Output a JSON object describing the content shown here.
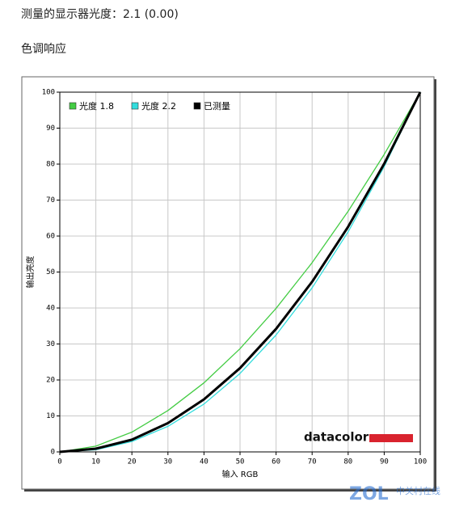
{
  "heading": "测量的显示器光度：2.1 (0.00)",
  "subheading": "色调响应",
  "logo": "datacolor",
  "watermark": {
    "brand": "ZOL",
    "name": "中关村在线"
  },
  "chart_data": {
    "type": "line",
    "x_label": "输入 RGB",
    "y_label": "输出亮度",
    "x": [
      0,
      10,
      20,
      30,
      40,
      50,
      60,
      70,
      80,
      90,
      100
    ],
    "series": [
      {
        "name": "光度 1.8",
        "color": "#44cc44",
        "values": [
          0,
          1.6,
          5.5,
          11.5,
          19.2,
          28.7,
          39.9,
          52.6,
          66.9,
          82.7,
          100
        ]
      },
      {
        "name": "光度 2.2",
        "color": "#33dddd",
        "values": [
          0,
          0.6,
          2.9,
          7.1,
          13.3,
          21.8,
          32.5,
          45.6,
          61.2,
          79.3,
          100
        ]
      },
      {
        "name": "已测量",
        "color": "#000000",
        "values": [
          0,
          0.9,
          3.4,
          8.0,
          14.6,
          23.3,
          34.2,
          47.3,
          62.6,
          80.1,
          100
        ]
      }
    ],
    "xlim": [
      0,
      100
    ],
    "ylim": [
      0,
      100
    ],
    "xticks": [
      0,
      10,
      20,
      30,
      40,
      50,
      60,
      70,
      80,
      90,
      100
    ],
    "yticks": [
      0,
      10,
      20,
      30,
      40,
      50,
      60,
      70,
      80,
      90,
      100
    ],
    "grid": true,
    "legend": "top-left"
  }
}
